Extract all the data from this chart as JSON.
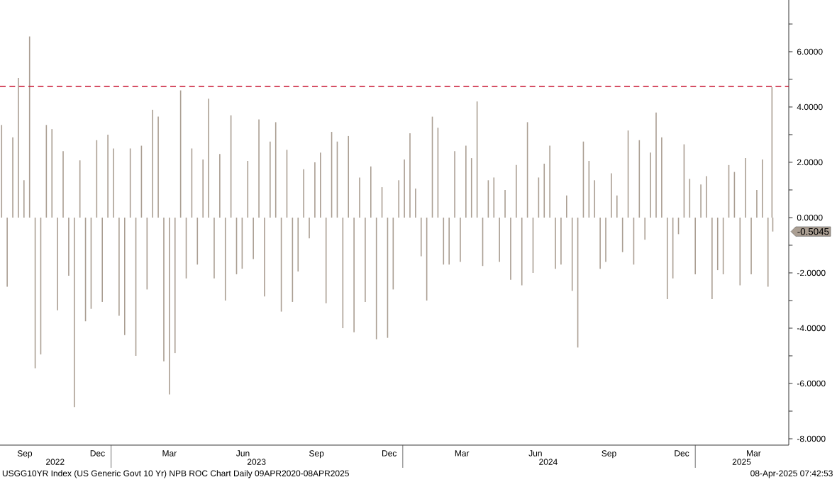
{
  "chart_data": {
    "type": "bar",
    "color": "#aa9e92",
    "x": [
      "2022-08-17",
      "2022-08-24",
      "2022-08-31",
      "2022-09-07",
      "2022-09-14",
      "2022-09-21",
      "2022-09-28",
      "2022-10-05",
      "2022-10-12",
      "2022-10-19",
      "2022-10-26",
      "2022-11-02",
      "2022-11-09",
      "2022-11-16",
      "2022-11-23",
      "2022-11-30",
      "2022-12-07",
      "2022-12-14",
      "2022-12-21",
      "2022-12-28",
      "2023-01-04",
      "2023-01-11",
      "2023-01-18",
      "2023-01-25",
      "2023-02-01",
      "2023-02-08",
      "2023-02-15",
      "2023-02-22",
      "2023-03-01",
      "2023-03-08",
      "2023-03-15",
      "2023-03-22",
      "2023-03-29",
      "2023-04-05",
      "2023-04-12",
      "2023-04-19",
      "2023-04-26",
      "2023-05-03",
      "2023-05-10",
      "2023-05-17",
      "2023-05-24",
      "2023-05-31",
      "2023-06-07",
      "2023-06-14",
      "2023-06-21",
      "2023-06-28",
      "2023-07-05",
      "2023-07-12",
      "2023-07-19",
      "2023-07-26",
      "2023-08-02",
      "2023-08-09",
      "2023-08-16",
      "2023-08-23",
      "2023-08-30",
      "2023-09-06",
      "2023-09-13",
      "2023-09-20",
      "2023-09-27",
      "2023-10-04",
      "2023-10-11",
      "2023-10-18",
      "2023-10-25",
      "2023-11-01",
      "2023-11-08",
      "2023-11-15",
      "2023-11-22",
      "2023-11-29",
      "2023-12-06",
      "2023-12-13",
      "2023-12-20",
      "2023-12-27",
      "2024-01-03",
      "2024-01-10",
      "2024-01-17",
      "2024-01-24",
      "2024-01-31",
      "2024-02-07",
      "2024-02-14",
      "2024-02-21",
      "2024-02-28",
      "2024-03-06",
      "2024-03-13",
      "2024-03-20",
      "2024-03-27",
      "2024-04-03",
      "2024-04-10",
      "2024-04-17",
      "2024-04-24",
      "2024-05-01",
      "2024-05-08",
      "2024-05-15",
      "2024-05-22",
      "2024-05-29",
      "2024-06-05",
      "2024-06-12",
      "2024-06-19",
      "2024-06-26",
      "2024-07-03",
      "2024-07-10",
      "2024-07-17",
      "2024-07-24",
      "2024-07-31",
      "2024-08-07",
      "2024-08-14",
      "2024-08-21",
      "2024-08-28",
      "2024-09-04",
      "2024-09-11",
      "2024-09-18",
      "2024-09-25",
      "2024-10-02",
      "2024-10-09",
      "2024-10-16",
      "2024-10-23",
      "2024-10-30",
      "2024-11-06",
      "2024-11-13",
      "2024-11-20",
      "2024-11-27",
      "2024-12-04",
      "2024-12-11",
      "2024-12-18",
      "2024-12-25",
      "2025-01-01",
      "2025-01-08",
      "2025-01-15",
      "2025-01-22",
      "2025-01-29",
      "2025-02-05",
      "2025-02-12",
      "2025-02-19",
      "2025-02-26",
      "2025-03-05",
      "2025-03-12",
      "2025-03-19",
      "2025-03-26",
      "2025-04-02",
      "2025-04-07",
      "2025-04-08"
    ],
    "values": [
      3.35,
      -2.5,
      2.9,
      5.05,
      1.35,
      6.55,
      -5.45,
      -4.95,
      3.35,
      3.2,
      -3.35,
      2.4,
      -2.1,
      -6.85,
      2.07,
      -3.75,
      -3.3,
      2.8,
      -3.05,
      3.0,
      2.5,
      -3.55,
      -4.25,
      2.5,
      -5.0,
      2.6,
      -2.6,
      3.9,
      3.65,
      -5.2,
      -6.4,
      -4.9,
      4.6,
      -2.2,
      2.5,
      -1.7,
      2.1,
      4.3,
      -2.2,
      2.3,
      -3.0,
      3.7,
      -2.05,
      -1.85,
      2.05,
      -1.5,
      3.55,
      -2.85,
      2.75,
      3.45,
      -3.4,
      2.45,
      -3.05,
      -1.95,
      1.75,
      -0.75,
      2.0,
      2.35,
      -3.1,
      3.1,
      2.75,
      -4.0,
      2.95,
      -4.15,
      1.45,
      -3.05,
      1.85,
      -4.4,
      1.1,
      -4.35,
      -2.6,
      1.35,
      2.1,
      3.05,
      1.05,
      -1.4,
      -3.0,
      3.65,
      3.25,
      -1.7,
      -1.7,
      2.4,
      -1.6,
      2.6,
      2.15,
      4.2,
      -1.75,
      1.35,
      1.45,
      -1.6,
      1.0,
      -2.25,
      1.9,
      -2.45,
      3.45,
      -2.0,
      1.45,
      1.95,
      2.6,
      -1.85,
      -1.7,
      0.8,
      -2.65,
      -4.7,
      2.75,
      2.05,
      1.35,
      -1.85,
      -1.6,
      1.6,
      0.8,
      -1.25,
      3.15,
      -1.7,
      2.8,
      -0.8,
      2.35,
      3.8,
      2.9,
      -2.95,
      -2.2,
      -0.6,
      2.65,
      1.4,
      -2.05,
      1.2,
      1.5,
      -2.95,
      -1.9,
      -2.05,
      1.9,
      1.65,
      -2.45,
      2.15,
      -2.05,
      1.0,
      2.1,
      -2.5,
      4.72,
      -0.5045
    ],
    "xlim": [
      "2022-08-15",
      "2025-04-28"
    ],
    "xticks": [
      {
        "value": "2022-09-15",
        "label": "Sep"
      },
      {
        "value": "2022-12-15",
        "label": "Dec"
      },
      {
        "value": "2023-03-15",
        "label": "Mar"
      },
      {
        "value": "2023-06-15",
        "label": "Jun"
      },
      {
        "value": "2023-09-15",
        "label": "Sep"
      },
      {
        "value": "2023-12-15",
        "label": "Dec"
      },
      {
        "value": "2024-03-15",
        "label": "Mar"
      },
      {
        "value": "2024-06-15",
        "label": "Jun"
      },
      {
        "value": "2024-09-15",
        "label": "Sep"
      },
      {
        "value": "2024-12-15",
        "label": "Dec"
      },
      {
        "value": "2025-03-15",
        "label": "Mar"
      }
    ],
    "x2lim": [
      "2022-08-15",
      "2025-04-28"
    ],
    "x2ticks": [
      {
        "value": "2022-10-23",
        "label": "2022"
      },
      {
        "value": "2023-07-02",
        "label": "2023"
      },
      {
        "value": "2024-07-01",
        "label": "2024"
      },
      {
        "value": "2025-02-28",
        "label": "2025"
      }
    ],
    "ylim": [
      -8.23,
      7.87
    ],
    "yticks": [
      {
        "value": 7,
        "label": null
      },
      {
        "value": 6,
        "label": "6.0000"
      },
      {
        "value": 5,
        "label": null
      },
      {
        "value": 4,
        "label": "4.0000"
      },
      {
        "value": 3,
        "label": null
      },
      {
        "value": 2,
        "label": "2.0000"
      },
      {
        "value": 1,
        "label": null
      },
      {
        "value": 0,
        "label": "0.0000"
      },
      {
        "value": -1,
        "label": null
      },
      {
        "value": -2,
        "label": "-2.0000"
      },
      {
        "value": -3,
        "label": null
      },
      {
        "value": -4,
        "label": "-4.0000"
      },
      {
        "value": -5,
        "label": null
      },
      {
        "value": -6,
        "label": "-6.0000"
      },
      {
        "value": -7,
        "label": null
      },
      {
        "value": -8,
        "label": "-8.0000"
      }
    ],
    "ref_lines": [
      {
        "axis": "y",
        "value": 4.75,
        "color": "#c8102e",
        "line_style": "dashed"
      }
    ],
    "annotations": [
      {
        "text": "-0.5045",
        "x": "2025-04-08",
        "y": -0.5045
      },
      "USGG10YR Index (US Generic Govt 10 Yr) NPB ROC Chart  Daily 09APR2020-08APR2025",
      "08-Apr-2025 07:42:53"
    ],
    "grid": false
  }
}
